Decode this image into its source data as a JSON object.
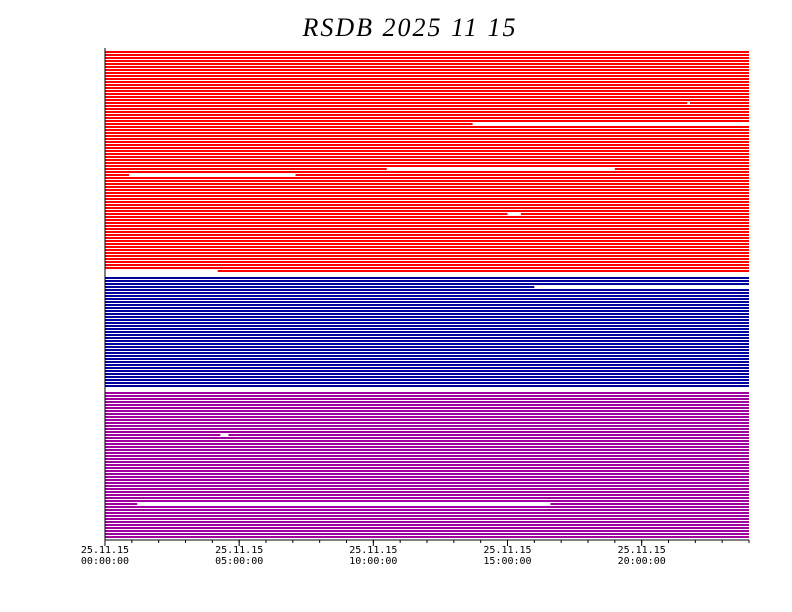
{
  "chart_data": {
    "type": "availability",
    "title": "RSDB  2025  11  15",
    "xlim": [
      0,
      24
    ],
    "xticks": [
      {
        "value": 0,
        "label": [
          "25.11.15",
          "00:00:00"
        ]
      },
      {
        "value": 5,
        "label": [
          "25.11.15",
          "05:00:00"
        ]
      },
      {
        "value": 10,
        "label": [
          "25.11.15",
          "10:00:00"
        ]
      },
      {
        "value": 15,
        "label": [
          "25.11.15",
          "15:00:00"
        ]
      },
      {
        "value": 20,
        "label": [
          "25.11.15",
          "20:00:00"
        ]
      }
    ],
    "xminorticks": [
      0,
      1,
      2,
      3,
      4,
      5,
      6,
      7,
      8,
      9,
      10,
      11,
      12,
      13,
      14,
      15,
      16,
      17,
      18,
      19,
      20,
      21,
      22,
      23,
      24
    ],
    "groups": [
      {
        "color": "#ff0000",
        "row_count": 74,
        "gaps": [
          {
            "row": 17,
            "start": 21.7,
            "end": 21.8
          },
          {
            "row": 24,
            "start": 13.7,
            "end": 24
          },
          {
            "row": 39,
            "start": 10.5,
            "end": 19.0
          },
          {
            "row": 41,
            "start": 0.9,
            "end": 7.1
          },
          {
            "row": 54,
            "start": 15.0,
            "end": 15.5
          },
          {
            "row": 73,
            "start": 0,
            "end": 4.2
          }
        ]
      },
      {
        "color": "#0000a0",
        "row_count": 37,
        "gaps": [
          {
            "row": 3,
            "start": 16.0,
            "end": 24
          }
        ]
      },
      {
        "color": "#a000a0",
        "row_count": 49,
        "gaps": [
          {
            "row": 14,
            "start": 4.3,
            "end": 4.6
          },
          {
            "row": 37,
            "start": 1.2,
            "end": 16.6
          }
        ]
      }
    ]
  }
}
